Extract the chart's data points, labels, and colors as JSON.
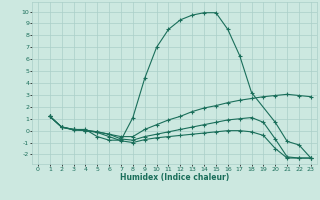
{
  "title": "",
  "xlabel": "Humidex (Indice chaleur)",
  "bg_color": "#cce8e0",
  "line_color": "#1a6e5a",
  "grid_color": "#aacfc8",
  "xlim": [
    -0.5,
    23.5
  ],
  "ylim": [
    -2.8,
    10.8
  ],
  "xticks": [
    0,
    1,
    2,
    3,
    4,
    5,
    6,
    7,
    8,
    9,
    10,
    11,
    12,
    13,
    14,
    15,
    16,
    17,
    18,
    19,
    20,
    21,
    22,
    23
  ],
  "yticks": [
    -2,
    -1,
    0,
    1,
    2,
    3,
    4,
    5,
    6,
    7,
    8,
    9,
    10
  ],
  "series": [
    {
      "x": [
        1,
        2,
        3,
        4,
        5,
        6,
        7,
        8,
        9,
        10,
        11,
        12,
        13,
        14,
        15,
        16,
        17,
        18,
        20,
        21,
        22,
        23
      ],
      "y": [
        1.2,
        0.3,
        0.1,
        0.1,
        -0.5,
        -0.8,
        -0.8,
        1.1,
        4.4,
        7.0,
        8.5,
        9.3,
        9.7,
        9.9,
        9.9,
        8.5,
        6.3,
        3.2,
        0.7,
        -0.9,
        -1.2,
        -2.3
      ]
    },
    {
      "x": [
        1,
        2,
        3,
        4,
        5,
        6,
        7,
        8,
        9,
        10,
        11,
        12,
        13,
        14,
        15,
        16,
        17,
        18,
        19,
        20,
        21,
        22,
        23
      ],
      "y": [
        1.2,
        0.3,
        0.1,
        0.05,
        -0.1,
        -0.3,
        -0.5,
        -0.5,
        0.1,
        0.5,
        0.9,
        1.2,
        1.6,
        1.9,
        2.1,
        2.35,
        2.55,
        2.7,
        2.85,
        2.95,
        3.05,
        2.95,
        2.85
      ]
    },
    {
      "x": [
        1,
        2,
        3,
        4,
        5,
        6,
        7,
        8,
        9,
        10,
        11,
        12,
        13,
        14,
        15,
        16,
        17,
        18,
        19,
        20,
        21,
        22,
        23
      ],
      "y": [
        1.2,
        0.3,
        0.1,
        0.0,
        -0.1,
        -0.3,
        -0.7,
        -0.8,
        -0.5,
        -0.3,
        -0.1,
        0.1,
        0.3,
        0.5,
        0.7,
        0.9,
        1.0,
        1.1,
        0.7,
        -0.7,
        -2.2,
        -2.3,
        -2.3
      ]
    },
    {
      "x": [
        1,
        2,
        3,
        4,
        5,
        6,
        7,
        8,
        9,
        10,
        11,
        12,
        13,
        14,
        15,
        16,
        17,
        18,
        19,
        20,
        21,
        22,
        23
      ],
      "y": [
        1.2,
        0.3,
        0.05,
        0.0,
        -0.15,
        -0.5,
        -0.85,
        -1.0,
        -0.75,
        -0.6,
        -0.5,
        -0.4,
        -0.3,
        -0.2,
        -0.1,
        0.0,
        0.0,
        -0.1,
        -0.4,
        -1.5,
        -2.3,
        -2.3,
        -2.3
      ]
    }
  ]
}
